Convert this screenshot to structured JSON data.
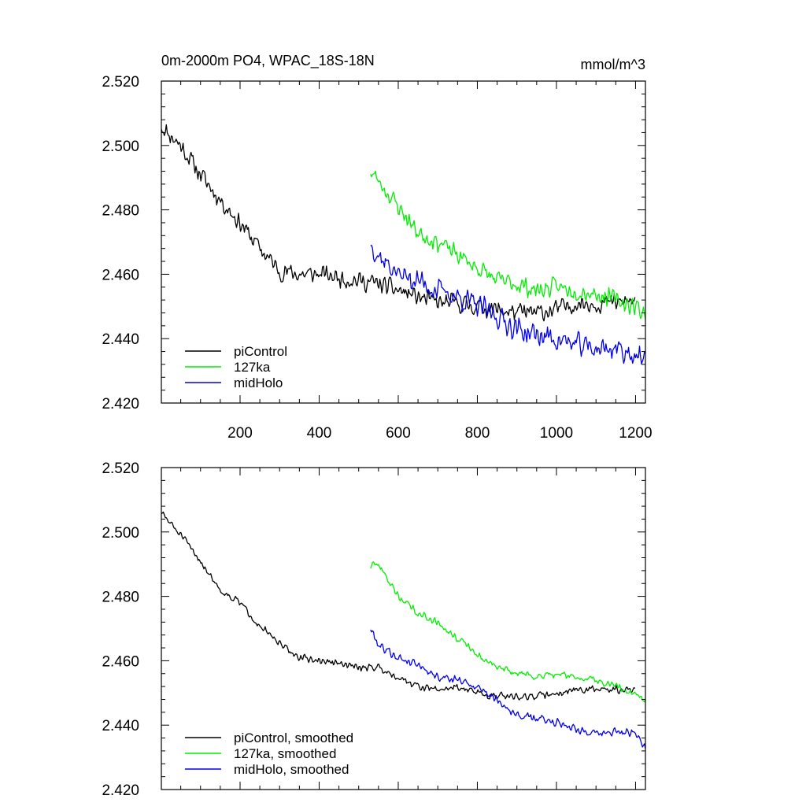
{
  "colors": {
    "piControl": "#000000",
    "127ka": "#00ee00",
    "midHolo": "#0000ee"
  },
  "chart_data": [
    {
      "type": "line",
      "title": "0m-2000m PO4, WPAC_18S-18N",
      "units": "mmol/m^3",
      "xlabel": "",
      "ylabel": "",
      "xlim": [
        1,
        1225
      ],
      "ylim": [
        2.42,
        2.52
      ],
      "xticks": [
        200,
        400,
        600,
        800,
        1000,
        1200
      ],
      "yticks": [
        2.42,
        2.44,
        2.46,
        2.48,
        2.5,
        2.52
      ],
      "ytick_labels": [
        "2.420",
        "2.440",
        "2.460",
        "2.480",
        "2.500",
        "2.520"
      ],
      "xtick_labels": [
        "200",
        "400",
        "600",
        "800",
        "1000",
        "1200"
      ],
      "legend_position": "bottom-left",
      "series": [
        {
          "name": "piControl",
          "color_key": "piControl",
          "noise": 0.0035,
          "seed": 11,
          "x": [
            1,
            50,
            100,
            150,
            200,
            250,
            300,
            350,
            400,
            450,
            500,
            550,
            600,
            650,
            700,
            750,
            800,
            850,
            900,
            950,
            1000,
            1050,
            1100,
            1150,
            1200
          ],
          "y": [
            2.506,
            2.5,
            2.491,
            2.483,
            2.476,
            2.468,
            2.461,
            2.46,
            2.46,
            2.459,
            2.458,
            2.457,
            2.455,
            2.453,
            2.451,
            2.451,
            2.45,
            2.449,
            2.448,
            2.448,
            2.449,
            2.451,
            2.451,
            2.451,
            2.452
          ]
        },
        {
          "name": "127ka",
          "color_key": "127ka",
          "noise": 0.0035,
          "seed": 23,
          "x": [
            530,
            550,
            600,
            650,
            700,
            750,
            800,
            850,
            900,
            950,
            1000,
            1050,
            1100,
            1150,
            1200,
            1225
          ],
          "y": [
            2.492,
            2.489,
            2.481,
            2.473,
            2.47,
            2.466,
            2.462,
            2.458,
            2.457,
            2.455,
            2.456,
            2.455,
            2.454,
            2.452,
            2.45,
            2.448
          ]
        },
        {
          "name": "midHolo",
          "color_key": "midHolo",
          "noise": 0.0045,
          "seed": 37,
          "x": [
            530,
            550,
            600,
            650,
            700,
            750,
            800,
            850,
            900,
            950,
            1000,
            1050,
            1100,
            1150,
            1200,
            1225
          ],
          "y": [
            2.47,
            2.466,
            2.46,
            2.458,
            2.455,
            2.453,
            2.45,
            2.447,
            2.443,
            2.441,
            2.44,
            2.438,
            2.437,
            2.437,
            2.435,
            2.432
          ]
        }
      ]
    },
    {
      "type": "line",
      "title": "",
      "xlabel": "",
      "ylabel": "",
      "xlim": [
        1,
        1225
      ],
      "ylim": [
        2.42,
        2.52
      ],
      "xticks": [
        200,
        400,
        600,
        800,
        1000,
        1200
      ],
      "yticks": [
        2.42,
        2.44,
        2.46,
        2.48,
        2.5,
        2.52
      ],
      "ytick_labels": [
        "2.420",
        "2.440",
        "2.460",
        "2.480",
        "2.500",
        "2.520"
      ],
      "xtick_labels": [],
      "legend_position": "bottom-left",
      "series": [
        {
          "name": "piControl, smoothed",
          "color_key": "piControl",
          "noise": 0.0014,
          "seed": 51,
          "x": [
            1,
            50,
            100,
            150,
            200,
            250,
            300,
            350,
            400,
            450,
            500,
            550,
            600,
            650,
            700,
            750,
            800,
            850,
            900,
            950,
            1000,
            1050,
            1100,
            1150,
            1200
          ],
          "y": [
            2.506,
            2.499,
            2.491,
            2.482,
            2.478,
            2.471,
            2.465,
            2.461,
            2.46,
            2.459,
            2.458,
            2.458,
            2.455,
            2.452,
            2.451,
            2.452,
            2.45,
            2.449,
            2.449,
            2.449,
            2.45,
            2.451,
            2.451,
            2.451,
            2.451
          ]
        },
        {
          "name": "127ka, smoothed",
          "color_key": "127ka",
          "noise": 0.0014,
          "seed": 63,
          "x": [
            530,
            550,
            600,
            650,
            700,
            750,
            800,
            850,
            900,
            950,
            1000,
            1050,
            1100,
            1150,
            1200,
            1225
          ],
          "y": [
            2.489,
            2.49,
            2.48,
            2.475,
            2.472,
            2.467,
            2.462,
            2.458,
            2.456,
            2.455,
            2.456,
            2.455,
            2.454,
            2.452,
            2.45,
            2.448
          ]
        },
        {
          "name": "midHolo, smoothed",
          "color_key": "midHolo",
          "noise": 0.0016,
          "seed": 79,
          "x": [
            530,
            550,
            600,
            650,
            700,
            750,
            800,
            850,
            900,
            950,
            1000,
            1050,
            1100,
            1150,
            1200,
            1225
          ],
          "y": [
            2.47,
            2.465,
            2.461,
            2.459,
            2.455,
            2.454,
            2.452,
            2.448,
            2.443,
            2.442,
            2.441,
            2.439,
            2.437,
            2.438,
            2.437,
            2.433
          ]
        }
      ]
    }
  ]
}
